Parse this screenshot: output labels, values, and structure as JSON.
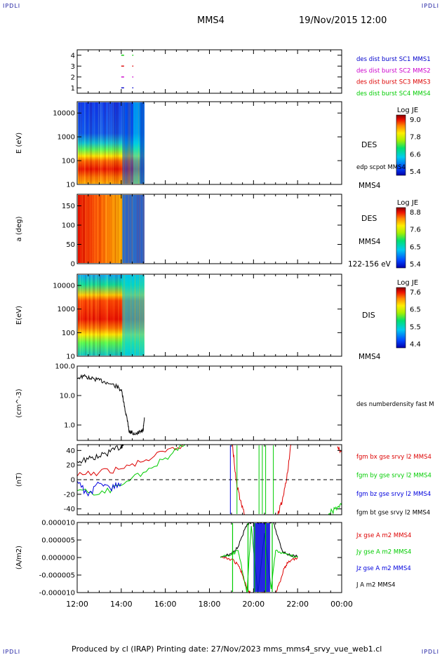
{
  "corner_label": "IPDLI",
  "header": {
    "spacecraft": "MMS4",
    "datetime": "19/Nov/2015 12:00"
  },
  "footer": {
    "text": "Produced by cl (IRAP)   Printing date: 27/Nov/2023   mms_mms4_srvy_vue_web1.cl"
  },
  "x_axis": {
    "ticks": [
      "12:00",
      "14:00",
      "16:00",
      "18:00",
      "20:00",
      "22:00",
      "00:00"
    ]
  },
  "colors": {
    "black": "#000000",
    "red": "#dd0000",
    "green": "#00cc00",
    "blue": "#0000dd",
    "magenta": "#cc00cc"
  },
  "chart_data": [
    {
      "type": "scatter",
      "panel": "burst-availability",
      "yticks": [
        "1",
        "2",
        "3",
        "4"
      ],
      "ylim": [
        0.5,
        4.5
      ],
      "legend": [
        {
          "text": "des dist burst SC1 MMS1",
          "color": "#0000cc"
        },
        {
          "text": "des dist burst SC2 MMS2",
          "color": "#cc00cc"
        },
        {
          "text": "des dist burst SC3 MMS3",
          "color": "#dd0000"
        },
        {
          "text": "des dist burst SC4 MMS4",
          "color": "#00cc00"
        }
      ],
      "series": [
        {
          "name": "des dist burst SC1 MMS1",
          "y": 1,
          "x_hours": [
            14.0,
            14.5
          ]
        },
        {
          "name": "des dist burst SC2 MMS2",
          "y": 2,
          "x_hours": [
            14.0,
            14.5
          ]
        },
        {
          "name": "des dist burst SC3 MMS3",
          "y": 3,
          "x_hours": [
            14.0,
            14.5
          ]
        },
        {
          "name": "des dist burst SC4 MMS4",
          "y": 4,
          "x_hours": [
            14.0,
            14.5
          ]
        }
      ]
    },
    {
      "type": "heatmap",
      "panel": "des-energy-spectrogram",
      "ylabel": "E (eV)",
      "yticks": [
        "10",
        "100",
        "1000",
        "10000"
      ],
      "yscale": "log",
      "ylim": [
        10,
        30000
      ],
      "xrange_hours": [
        12.0,
        15.05
      ],
      "species": "DES",
      "right_labels": [
        "edp scpot MMS4",
        "MMS4"
      ],
      "colorbar": {
        "title": "Log JE",
        "ticks": [
          "9.0",
          "7.8",
          "6.6",
          "5.4"
        ]
      }
    },
    {
      "type": "heatmap",
      "panel": "des-pitch-angle",
      "ylabel": "a (deg)",
      "yticks": [
        "0",
        "50",
        "100",
        "150"
      ],
      "ylim": [
        0,
        180
      ],
      "xrange_hours": [
        12.0,
        15.05
      ],
      "species": "DES",
      "right_labels": [
        "MMS4",
        "122-156 eV"
      ],
      "colorbar": {
        "title": "Log JE",
        "ticks": [
          "8.8",
          "7.6",
          "6.5",
          "5.4"
        ]
      }
    },
    {
      "type": "heatmap",
      "panel": "dis-energy-spectrogram",
      "ylabel": "E(eV)",
      "yticks": [
        "10",
        "100",
        "1000",
        "10000"
      ],
      "yscale": "log",
      "ylim": [
        10,
        30000
      ],
      "xrange_hours": [
        12.0,
        15.05
      ],
      "species": "DIS",
      "right_labels": [
        "MMS4"
      ],
      "colorbar": {
        "title": "Log JE",
        "ticks": [
          "7.6",
          "6.5",
          "5.5",
          "4.4"
        ]
      }
    },
    {
      "type": "line",
      "panel": "density",
      "ylabel": "(cm^-3)",
      "yticks": [
        "1.0",
        "10.0",
        "100.0"
      ],
      "yscale": "log",
      "ylim": [
        0.3,
        100
      ],
      "legend": [
        {
          "text": "des numberdensity fast M",
          "color": "#000000"
        }
      ],
      "series": [
        {
          "name": "des numberdensity fast M",
          "x_hours": [
            12.0,
            12.3,
            12.6,
            12.9,
            13.2,
            13.5,
            13.8,
            14.0,
            14.1,
            14.2,
            14.3,
            14.35,
            14.5,
            14.7,
            14.9,
            15.0,
            15.05
          ],
          "values": [
            40,
            45,
            38,
            35,
            30,
            25,
            20,
            15,
            6,
            2.5,
            1.2,
            0.6,
            0.55,
            0.5,
            0.6,
            0.7,
            1.8
          ]
        }
      ]
    },
    {
      "type": "line",
      "panel": "magnetic-field",
      "ylabel": "(nT)",
      "yticks": [
        "-40",
        "-20",
        "0",
        "20",
        "40"
      ],
      "ylim": [
        -48,
        48
      ],
      "legend": [
        {
          "text": "fgm bx gse srvy l2 MMS4",
          "color": "#dd0000"
        },
        {
          "text": "fgm by gse srvy l2 MMS4",
          "color": "#00cc00"
        },
        {
          "text": "fgm bz gse srvy l2 MMS4",
          "color": "#0000dd"
        },
        {
          "text": "fgm bt gse srvy l2 MMS4",
          "color": "#000000"
        }
      ],
      "series": [
        {
          "name": "fgm bt gse srvy l2 MMS4",
          "x_hours": [
            12.0,
            12.5,
            13.0,
            13.5,
            14.0,
            14.1
          ],
          "values": [
            25,
            28,
            32,
            38,
            46,
            48
          ]
        },
        {
          "name": "fgm bx gse srvy l2 MMS4",
          "x_hours": [
            12.0,
            13.0,
            14.0,
            15.0,
            16.0,
            16.9
          ],
          "values": [
            5,
            10,
            15,
            25,
            38,
            48
          ]
        },
        {
          "name": "fgm by gse srvy l2 MMS4",
          "x_hours": [
            12.0,
            13.0,
            14.0,
            15.0,
            16.0,
            16.9
          ],
          "values": [
            -15,
            -20,
            -8,
            10,
            30,
            48
          ]
        },
        {
          "name": "fgm bz gse srvy l2 MMS4",
          "x_hours": [
            12.0,
            12.5,
            13.0,
            13.5,
            14.0
          ],
          "values": [
            -2,
            -22,
            -5,
            -12,
            -5
          ]
        },
        {
          "name": "fgm bx gse srvy l2 MMS4",
          "x_hours": [
            19.05,
            19.2,
            19.4,
            19.6
          ],
          "values": [
            48,
            0,
            -28,
            -48
          ]
        },
        {
          "name": "fgm bx gse srvy l2 MMS4",
          "x_hours": [
            21.1,
            21.3,
            21.5,
            21.7
          ],
          "values": [
            -48,
            -30,
            0,
            48
          ]
        },
        {
          "name": "fgm bx gse srvy l2 MMS4",
          "x_hours": [
            23.8,
            24.0
          ],
          "values": [
            45,
            38
          ]
        },
        {
          "name": "fgm by gse srvy l2 MMS4",
          "x_hours": [
            23.35,
            23.7,
            24.0
          ],
          "values": [
            -48,
            -40,
            -35
          ]
        }
      ]
    },
    {
      "type": "line",
      "panel": "current-density",
      "ylabel": "(A/m2)",
      "yticks": [
        "-0.000010",
        "-0.000005",
        "0.000000",
        "0.000005",
        "0.000010"
      ],
      "ylim": [
        -1e-05,
        1e-05
      ],
      "legend": [
        {
          "text": "Jx gse A m2 MMS4",
          "color": "#dd0000"
        },
        {
          "text": "Jy gse A m2 MMS4",
          "color": "#00cc00"
        },
        {
          "text": "Jz gse A m2 MMS4",
          "color": "#0000dd"
        },
        {
          "text": "J A m2 MMS4",
          "color": "#000000"
        }
      ],
      "series": [
        {
          "name": "J A m2 MMS4",
          "x_hours": [
            18.5,
            19.0,
            19.3,
            19.6,
            19.8,
            20.0,
            20.3,
            20.6,
            20.9,
            21.1,
            21.3,
            21.5,
            22.0
          ],
          "values": [
            2e-07,
            1e-06,
            3e-06,
            8e-06,
            1e-05,
            1e-05,
            1e-05,
            1e-05,
            1e-05,
            6e-06,
            2e-06,
            1e-06,
            2e-07
          ]
        },
        {
          "name": "Jx gse A m2 MMS4",
          "x_hours": [
            18.5,
            19.0,
            19.3,
            19.5,
            19.7,
            19.85,
            21.0,
            21.2,
            21.4,
            21.6,
            22.0
          ],
          "values": [
            0,
            -5e-07,
            -2e-06,
            -5e-06,
            -9e-06,
            -1e-05,
            -1e-05,
            -7e-06,
            -3e-06,
            -1e-06,
            0
          ]
        },
        {
          "name": "Jy gse A m2 MMS4",
          "x_hours": [
            18.5,
            19.0,
            19.3,
            19.5,
            19.7,
            19.9,
            20.2,
            20.5,
            20.8,
            21.0,
            21.5,
            22.0
          ],
          "values": [
            0,
            8e-07,
            2e-06,
            -4e-06,
            -1e-05,
            9e-06,
            -1e-05,
            7e-06,
            -9e-06,
            2e-06,
            1e-06,
            0
          ]
        }
      ]
    }
  ]
}
